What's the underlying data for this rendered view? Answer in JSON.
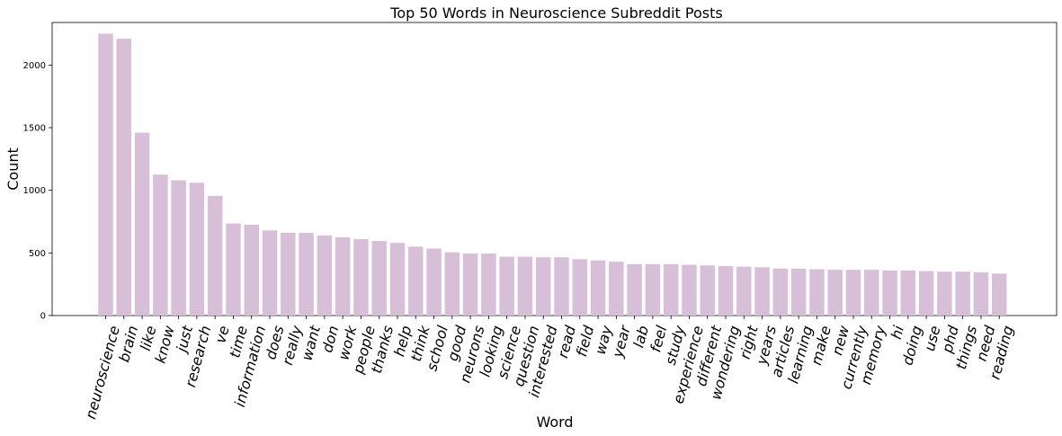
{
  "chart_data": {
    "type": "bar",
    "title": "Top 50 Words in Neuroscience Subreddit Posts",
    "xlabel": "Word",
    "ylabel": "Count",
    "ylim": [
      0,
      2340
    ],
    "yticks": [
      0,
      500,
      1000,
      1500,
      2000
    ],
    "bar_color": "#d8bfd8",
    "grid": false,
    "categories": [
      "neuroscience",
      "brain",
      "like",
      "know",
      "just",
      "research",
      "ve",
      "time",
      "information",
      "does",
      "really",
      "want",
      "don",
      "work",
      "people",
      "thanks",
      "help",
      "think",
      "school",
      "good",
      "neurons",
      "looking",
      "science",
      "question",
      "interested",
      "read",
      "field",
      "way",
      "year",
      "lab",
      "feel",
      "study",
      "experience",
      "different",
      "wondering",
      "right",
      "years",
      "articles",
      "learning",
      "make",
      "new",
      "currently",
      "memory",
      "hi",
      "doing",
      "use",
      "phd",
      "things",
      "need",
      "reading"
    ],
    "values": [
      2250,
      2210,
      1460,
      1125,
      1080,
      1060,
      955,
      735,
      725,
      680,
      660,
      660,
      640,
      625,
      610,
      595,
      580,
      550,
      535,
      505,
      495,
      495,
      470,
      470,
      465,
      465,
      450,
      440,
      430,
      410,
      410,
      410,
      405,
      400,
      395,
      390,
      385,
      375,
      375,
      370,
      365,
      365,
      365,
      360,
      360,
      355,
      350,
      350,
      345,
      335
    ]
  }
}
